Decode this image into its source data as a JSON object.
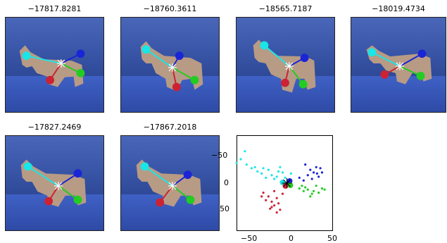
{
  "panels": [
    {
      "title": "−17817.8281"
    },
    {
      "title": "−18760.3611"
    },
    {
      "title": "−18565.7187"
    },
    {
      "title": "−18019.4734"
    },
    {
      "title": "−17827.2469"
    },
    {
      "title": "−17867.2018"
    }
  ],
  "colors": {
    "cyan": "#19e6e6",
    "blue": "#1a25d6",
    "green": "#22cc22",
    "red": "#cc2233",
    "white": "#ffffff",
    "horse": "#b89b85"
  },
  "chart_data": {
    "type": "scatter",
    "title": "",
    "xlabel": "",
    "ylabel": "",
    "xlim": [
      -60,
      55
    ],
    "ylim": [
      90,
      -90
    ],
    "x_ticks": [
      "−50",
      "0",
      "50"
    ],
    "y_ticks": [
      "−50",
      "0",
      "50"
    ],
    "series": [
      {
        "color": "cyan",
        "points": [
          [
            -60,
            -38
          ],
          [
            -55,
            -45
          ],
          [
            -50,
            -60
          ],
          [
            -42,
            -28
          ],
          [
            -35,
            -22
          ],
          [
            -30,
            -18
          ],
          [
            -28,
            -28
          ],
          [
            -22,
            -25
          ],
          [
            -18,
            -15
          ],
          [
            -12,
            -12
          ],
          [
            -8,
            -30
          ],
          [
            -5,
            -20
          ],
          [
            -2,
            -10
          ],
          [
            2,
            -5
          ],
          [
            -15,
            -8
          ],
          [
            -25,
            -10
          ],
          [
            -38,
            -30
          ],
          [
            -48,
            -35
          ],
          [
            5,
            -18
          ],
          [
            -10,
            -22
          ]
        ]
      },
      {
        "color": "blue",
        "points": [
          [
            22,
            -35
          ],
          [
            28,
            -25
          ],
          [
            32,
            -20
          ],
          [
            35,
            -30
          ],
          [
            38,
            -12
          ],
          [
            40,
            -28
          ],
          [
            30,
            -8
          ],
          [
            25,
            -15
          ],
          [
            42,
            -20
          ],
          [
            36,
            -18
          ],
          [
            15,
            -10
          ],
          [
            20,
            -5
          ]
        ]
      },
      {
        "color": "green",
        "points": [
          [
            15,
            10
          ],
          [
            20,
            15
          ],
          [
            25,
            12
          ],
          [
            30,
            20
          ],
          [
            35,
            5
          ],
          [
            38,
            18
          ],
          [
            42,
            10
          ],
          [
            28,
            25
          ],
          [
            22,
            8
          ],
          [
            45,
            12
          ],
          [
            18,
            5
          ],
          [
            32,
            15
          ]
        ]
      },
      {
        "color": "red",
        "points": [
          [
            -28,
            18
          ],
          [
            -22,
            25
          ],
          [
            -18,
            35
          ],
          [
            -15,
            42
          ],
          [
            -12,
            28
          ],
          [
            -8,
            50
          ],
          [
            -10,
            38
          ],
          [
            -20,
            48
          ],
          [
            -25,
            32
          ],
          [
            -5,
            20
          ],
          [
            -15,
            15
          ],
          [
            -30,
            25
          ],
          [
            -12,
            55
          ],
          [
            -18,
            45
          ]
        ]
      }
    ]
  }
}
